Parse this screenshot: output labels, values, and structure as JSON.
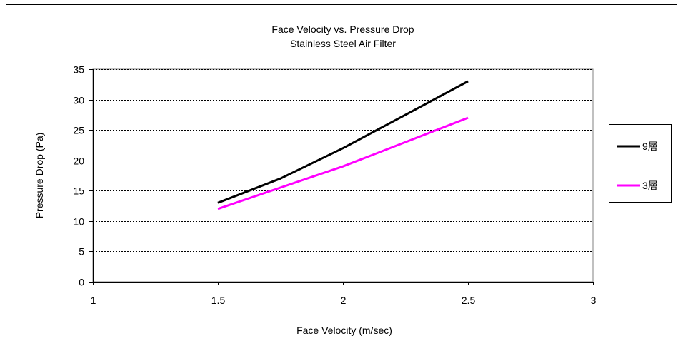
{
  "chart_data": {
    "type": "line",
    "title": "Face Velocity vs. Pressure Drop",
    "subtitle": "Stainless Steel Air Filter",
    "xlabel": "Face Velocity (m/sec)",
    "ylabel": "Pressure Drop (Pa)",
    "xlim": [
      1,
      3
    ],
    "ylim": [
      0,
      35
    ],
    "x_ticks": [
      "1",
      "1.5",
      "2",
      "2.5",
      "3"
    ],
    "y_ticks": [
      "0",
      "5",
      "10",
      "15",
      "20",
      "25",
      "30",
      "35"
    ],
    "grid": "horizontal dotted",
    "legend_position": "right",
    "series": [
      {
        "name": "9層",
        "color": "#000000",
        "x": [
          1.5,
          1.75,
          2.0,
          2.25,
          2.5
        ],
        "y": [
          13,
          17,
          22,
          27.5,
          33
        ]
      },
      {
        "name": "3層",
        "color": "#ff00ff",
        "x": [
          1.5,
          2.0,
          2.5
        ],
        "y": [
          12,
          19,
          27
        ]
      }
    ]
  }
}
